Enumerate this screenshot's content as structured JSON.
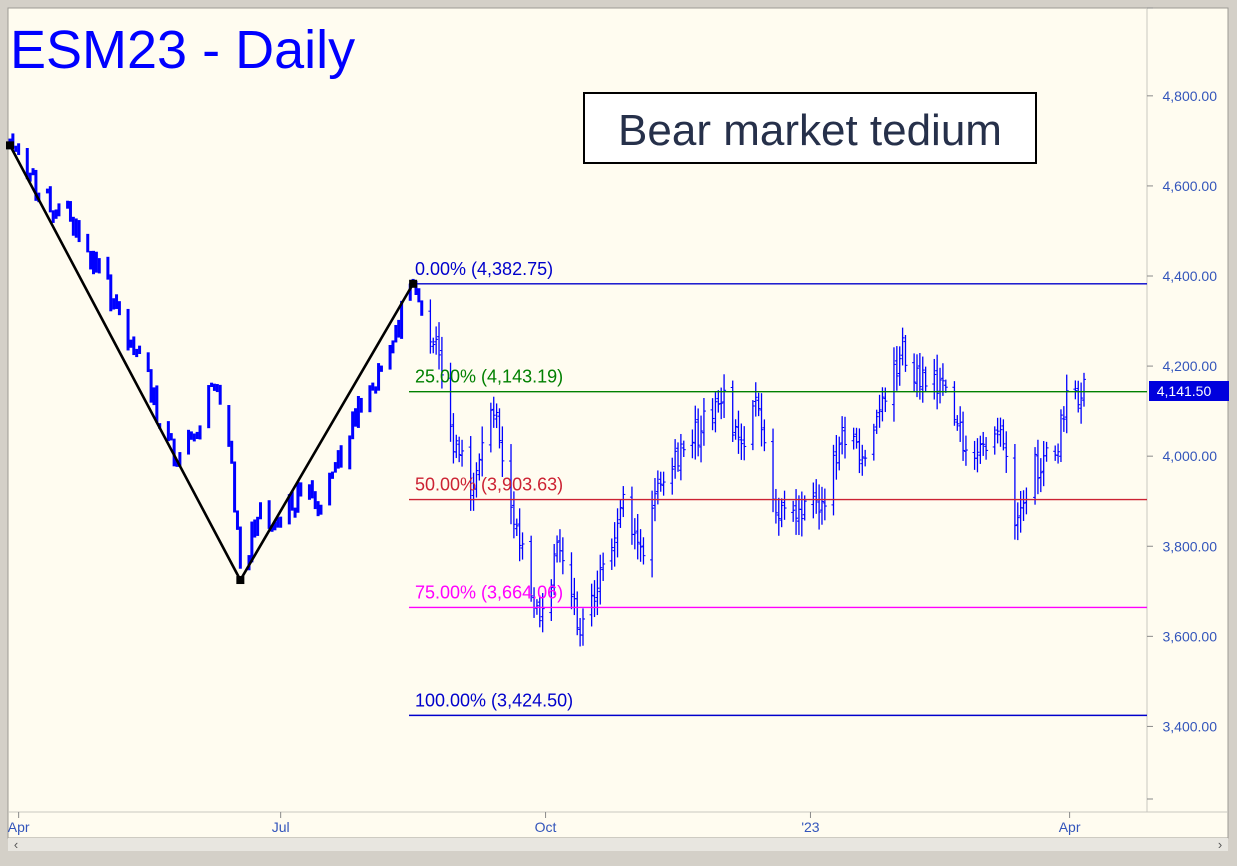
{
  "window": {
    "title": "ESM23 - Daily"
  },
  "annotation": "Bear market tedium",
  "scroll_arrows": {
    "left": "‹",
    "right": "›"
  },
  "colors": {
    "background": "#fffcf0",
    "bars": "#0000ff",
    "title": "#0000ff",
    "fib_0": "#0000cc",
    "fib_25": "#008000",
    "fib_50": "#cc2233",
    "fib_75": "#ff00ff",
    "fib_100": "#0000cc",
    "zigzag": "#000000",
    "axis_text": "#3355bb"
  },
  "chart_data": {
    "type": "ohlc-bars",
    "title": "ESM23 - Daily",
    "x_ticks": [
      "Apr",
      "Jul",
      "Oct",
      "'23",
      "Apr"
    ],
    "y_ticks": [
      "4,800.00",
      "4,600.00",
      "4,400.00",
      "4,200.00",
      "4,000.00",
      "3,800.00",
      "3,600.00",
      "3,400.00"
    ],
    "y_tick_values": [
      4800,
      4600,
      4400,
      4200,
      4000,
      3800,
      3600,
      3400
    ],
    "ylim": [
      3210,
      4995
    ],
    "last_price": {
      "label": "4,141.50",
      "value": 4141.5
    },
    "fib_levels": [
      {
        "label": "0.00% (4,382.75)",
        "value": 4382.75,
        "color": "#0000cc"
      },
      {
        "label": "25.00% (4,143.19)",
        "value": 4143.19,
        "color": "#008000"
      },
      {
        "label": "50.00% (3,903.63)",
        "value": 3903.63,
        "color": "#cc2233"
      },
      {
        "label": "75.00% (3,664.06)",
        "value": 3664.06,
        "color": "#ff00ff"
      },
      {
        "label": "100.00% (3,424.50)",
        "value": 3424.5,
        "color": "#0000cc"
      }
    ],
    "zigzag": [
      {
        "date": "2022-03-29",
        "value": 4690
      },
      {
        "date": "2022-06-17",
        "value": 3725
      },
      {
        "date": "2022-08-16",
        "value": 4382.75
      }
    ],
    "price_path": [
      [
        "2022-03-29",
        4690
      ],
      [
        "2022-04-06",
        4610
      ],
      [
        "2022-04-12",
        4550
      ],
      [
        "2022-04-20",
        4520
      ],
      [
        "2022-04-27",
        4440
      ],
      [
        "2022-05-03",
        4360
      ],
      [
        "2022-05-10",
        4260
      ],
      [
        "2022-05-16",
        4180
      ],
      [
        "2022-05-20",
        4070
      ],
      [
        "2022-05-26",
        3980
      ],
      [
        "2022-06-02",
        4060
      ],
      [
        "2022-06-08",
        4150
      ],
      [
        "2022-06-13",
        4050
      ],
      [
        "2022-06-17",
        3730
      ],
      [
        "2022-06-24",
        3880
      ],
      [
        "2022-07-01",
        3850
      ],
      [
        "2022-07-08",
        3920
      ],
      [
        "2022-07-15",
        3880
      ],
      [
        "2022-07-22",
        4000
      ],
      [
        "2022-07-29",
        4130
      ],
      [
        "2022-08-05",
        4190
      ],
      [
        "2022-08-12",
        4320
      ],
      [
        "2022-08-16",
        4382
      ],
      [
        "2022-08-23",
        4260
      ],
      [
        "2022-08-30",
        4020
      ],
      [
        "2022-09-06",
        3920
      ],
      [
        "2022-09-13",
        4120
      ],
      [
        "2022-09-20",
        3880
      ],
      [
        "2022-09-27",
        3680
      ],
      [
        "2022-09-30",
        3660
      ],
      [
        "2022-10-06",
        3800
      ],
      [
        "2022-10-13",
        3600
      ],
      [
        "2022-10-20",
        3720
      ],
      [
        "2022-10-27",
        3900
      ],
      [
        "2022-11-03",
        3780
      ],
      [
        "2022-11-10",
        3970
      ],
      [
        "2022-11-17",
        4020
      ],
      [
        "2022-11-24",
        4060
      ],
      [
        "2022-12-01",
        4140
      ],
      [
        "2022-12-08",
        4020
      ],
      [
        "2022-12-14",
        4120
      ],
      [
        "2022-12-20",
        3880
      ],
      [
        "2022-12-28",
        3860
      ],
      [
        "2023-01-05",
        3890
      ],
      [
        "2023-01-12",
        4030
      ],
      [
        "2023-01-20",
        4000
      ],
      [
        "2023-01-27",
        4130
      ],
      [
        "2023-02-02",
        4230
      ],
      [
        "2023-02-09",
        4160
      ],
      [
        "2023-02-16",
        4140
      ],
      [
        "2023-02-23",
        4040
      ],
      [
        "2023-03-02",
        4020
      ],
      [
        "2023-03-09",
        4060
      ],
      [
        "2023-03-13",
        3880
      ],
      [
        "2023-03-20",
        3980
      ],
      [
        "2023-03-27",
        4000
      ],
      [
        "2023-03-31",
        4150
      ],
      [
        "2023-04-06",
        4141.5
      ]
    ]
  }
}
